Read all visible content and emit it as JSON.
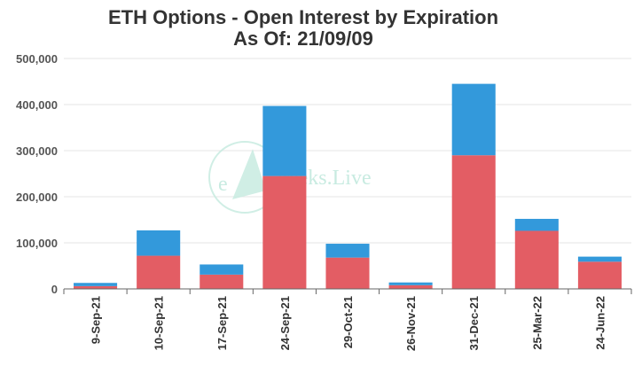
{
  "chart_data": {
    "type": "bar",
    "stacked": true,
    "title": "ETH Options - Open Interest by Expiration",
    "subtitle": "As Of: 21/09/09",
    "categories": [
      "9-Sep-21",
      "10-Sep-21",
      "17-Sep-21",
      "24-Sep-21",
      "29-Oct-21",
      "26-Nov-21",
      "31-Dec-21",
      "25-Mar-22",
      "24-Jun-22"
    ],
    "series": [
      {
        "values": [
          6000,
          72000,
          31000,
          245000,
          68000,
          8000,
          290000,
          126000,
          59000
        ],
        "color": "#e35d64"
      },
      {
        "values": [
          7000,
          55000,
          22000,
          152000,
          30000,
          6000,
          155000,
          26000,
          11000
        ],
        "color": "#3399db"
      }
    ],
    "ylim": [
      0,
      500000
    ],
    "yticks": [
      0,
      100000,
      200000,
      300000,
      400000,
      500000
    ],
    "ytick_labels": [
      "0",
      "100,000",
      "200,000",
      "300,000",
      "400,000",
      "500,000"
    ],
    "grid": true,
    "legend": "none"
  },
  "watermark": {
    "text": "reeks.Live",
    "letter": "e",
    "color": "#bfe8dc"
  }
}
